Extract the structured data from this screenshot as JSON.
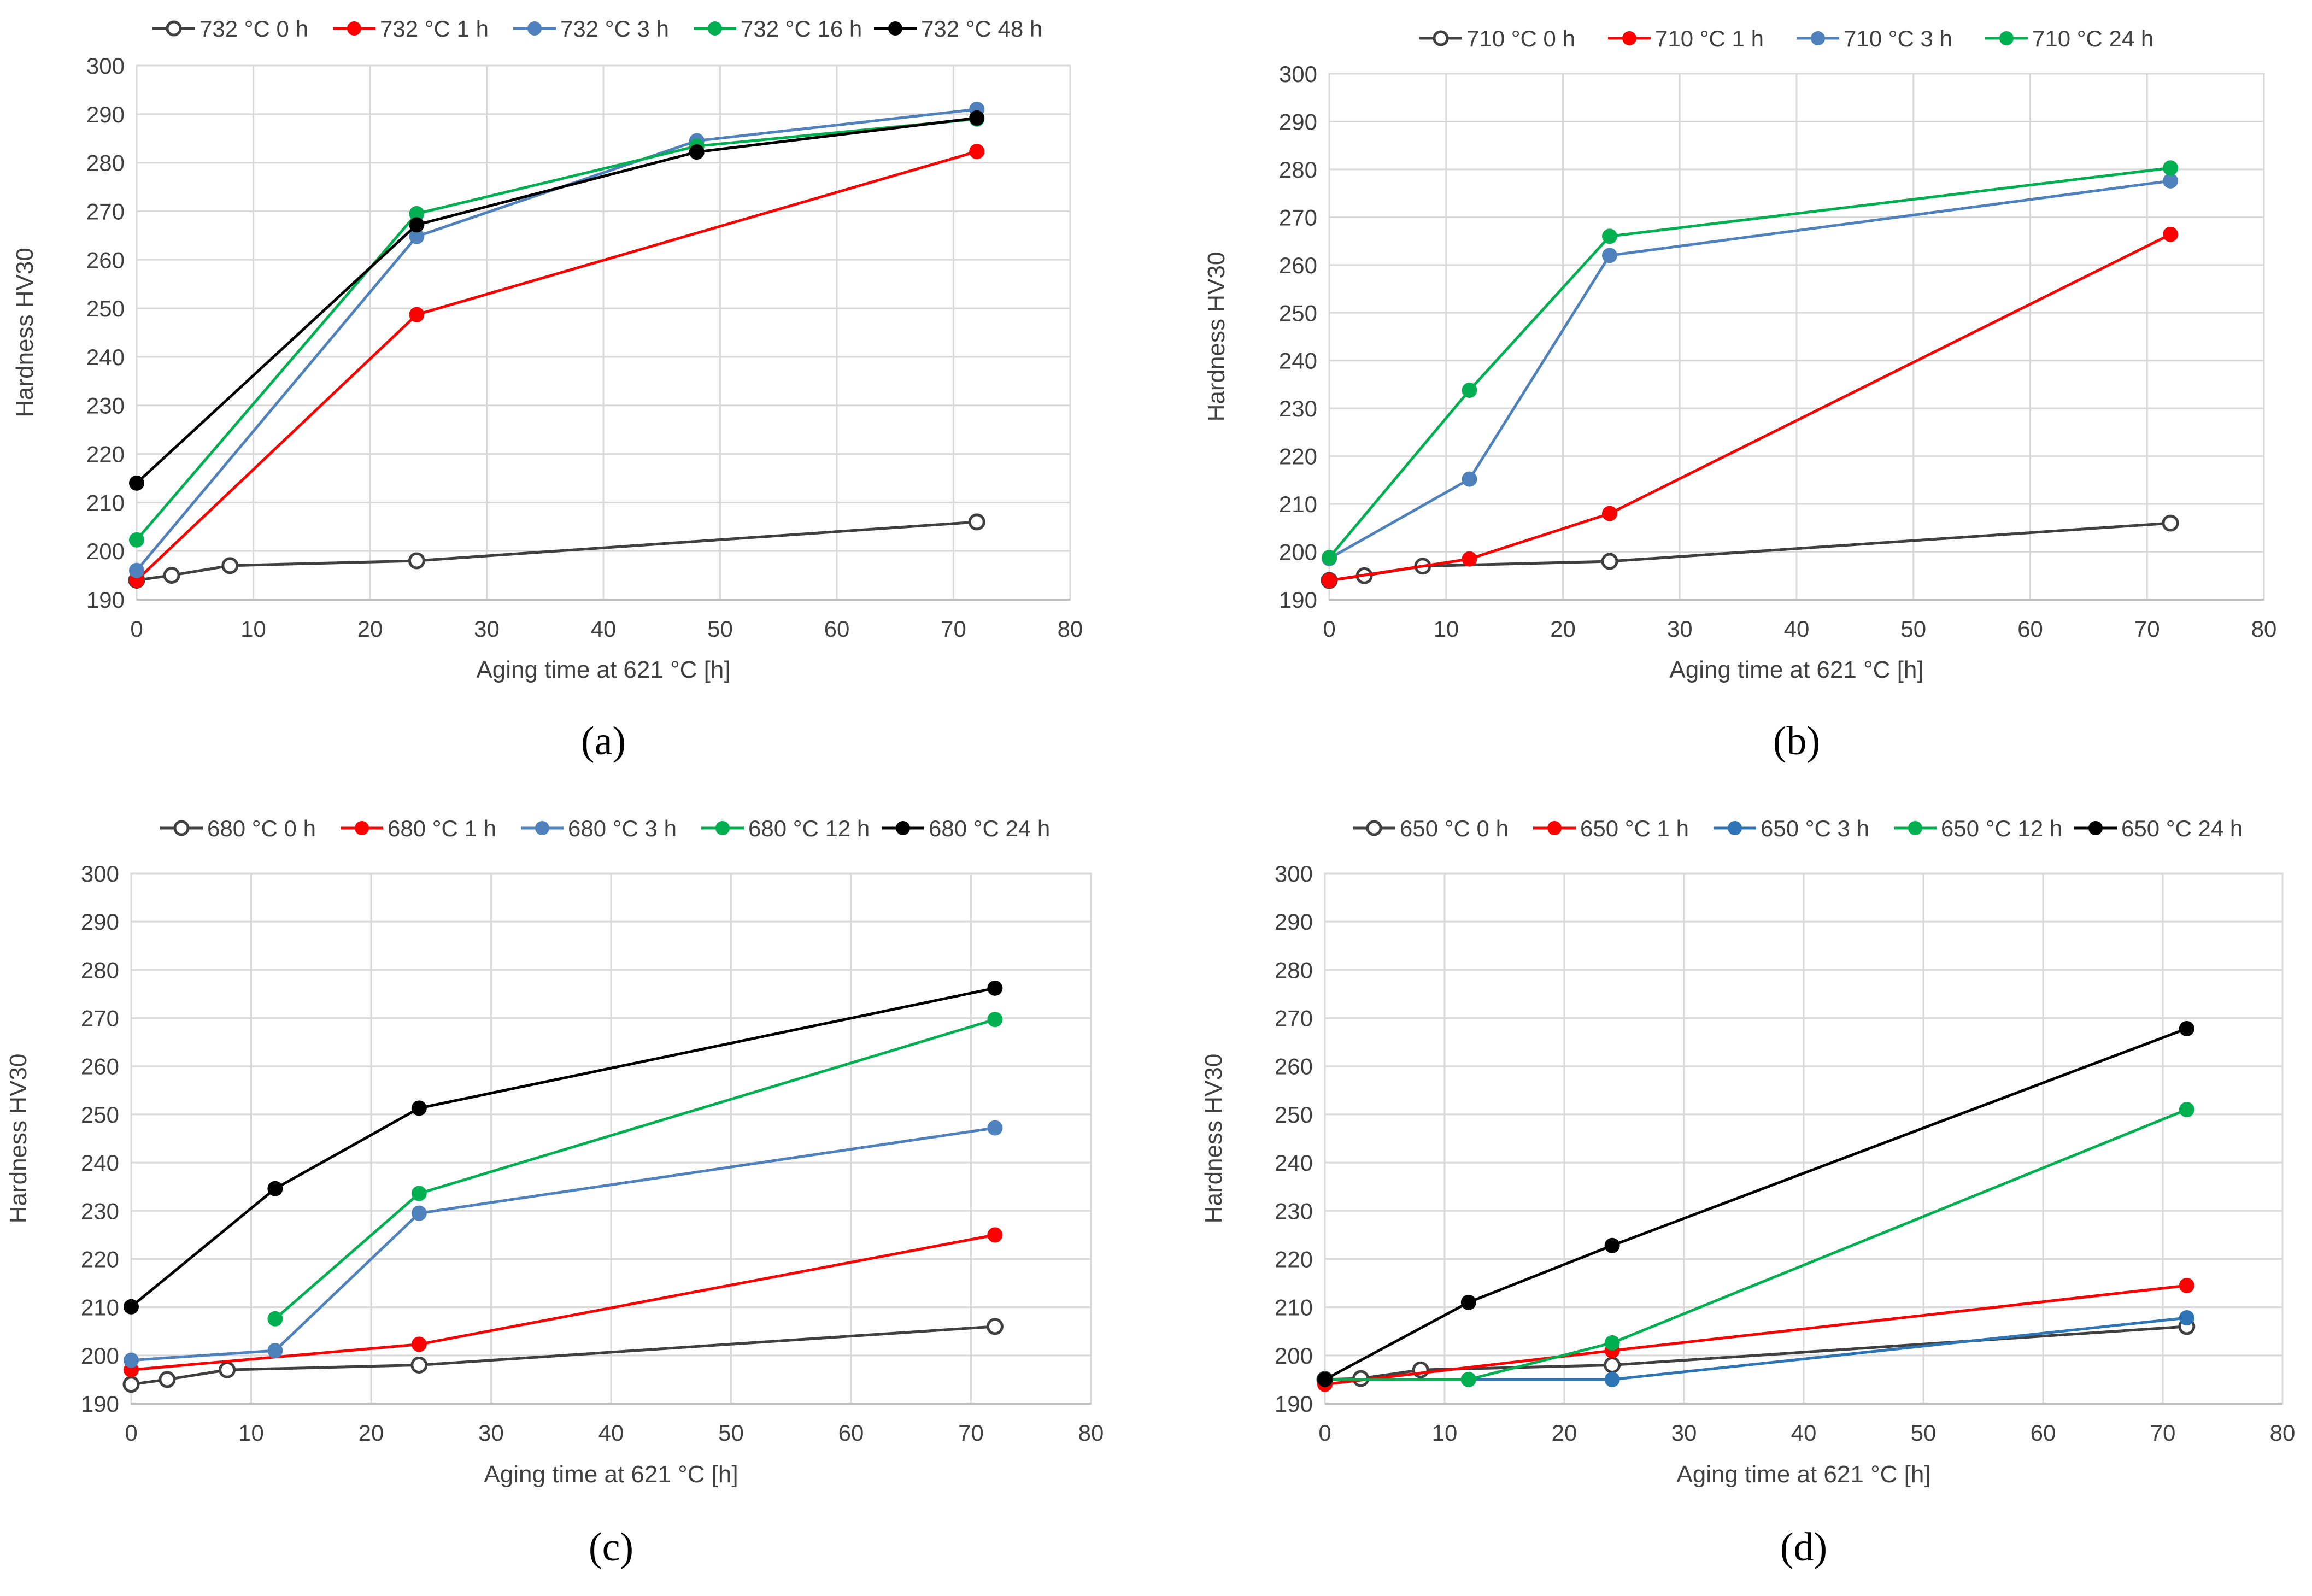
{
  "chart_data": [
    {
      "id": "a",
      "panel_label": "(a)",
      "type": "line",
      "title": "",
      "xlabel": "Aging time at 621  °C [h]",
      "ylabel": "Hardness HV30",
      "xlim": [
        0,
        80
      ],
      "ylim": [
        190,
        300
      ],
      "xticks": [
        "0",
        "10",
        "20",
        "30",
        "40",
        "50",
        "60",
        "70",
        "80"
      ],
      "yticks": [
        "190",
        "200",
        "210",
        "220",
        "230",
        "240",
        "250",
        "260",
        "270",
        "280",
        "290",
        "300"
      ],
      "grid": true,
      "legend_position": "top",
      "series": [
        {
          "name": "732 °C 0 h",
          "color": "#404040",
          "hollow": true,
          "x": [
            0,
            3,
            8,
            24,
            72
          ],
          "y": [
            194,
            195,
            197,
            198,
            206
          ]
        },
        {
          "name": "732 °C 1 h",
          "color": "#ff0000",
          "hollow": false,
          "x": [
            0,
            24,
            72
          ],
          "y": [
            194,
            248.7,
            282.3
          ]
        },
        {
          "name": "732 °C 3 h",
          "color": "#4f81bd",
          "hollow": false,
          "x": [
            0,
            24,
            48,
            72
          ],
          "y": [
            196,
            264.8,
            284.5,
            291
          ]
        },
        {
          "name": "732 °C 16 h",
          "color": "#00b050",
          "hollow": false,
          "x": [
            0,
            24,
            48,
            72
          ],
          "y": [
            202.3,
            269.5,
            283.4,
            289
          ]
        },
        {
          "name": "732 °C 48 h",
          "color": "#000000",
          "hollow": false,
          "x": [
            0,
            24,
            48,
            72
          ],
          "y": [
            214,
            267.2,
            282.2,
            289.2
          ]
        }
      ]
    },
    {
      "id": "b",
      "panel_label": "(b)",
      "type": "line",
      "title": "",
      "xlabel": "Aging time at 621  °C [h]",
      "ylabel": "Hardness HV30",
      "xlim": [
        0,
        80
      ],
      "ylim": [
        190,
        300
      ],
      "xticks": [
        "0",
        "10",
        "20",
        "30",
        "40",
        "50",
        "60",
        "70",
        "80"
      ],
      "yticks": [
        "190",
        "200",
        "210",
        "220",
        "230",
        "240",
        "250",
        "260",
        "270",
        "280",
        "290",
        "300"
      ],
      "grid": true,
      "legend_position": "top",
      "series": [
        {
          "name": "710 °C 0 h",
          "color": "#404040",
          "hollow": true,
          "x": [
            0,
            3,
            8,
            24,
            72
          ],
          "y": [
            194,
            195,
            197,
            198,
            206
          ]
        },
        {
          "name": "710 °C 1 h",
          "color": "#ff0000",
          "hollow": false,
          "x": [
            0,
            12,
            24,
            72
          ],
          "y": [
            194,
            198.5,
            208,
            266.4
          ]
        },
        {
          "name": "710 °C 3 h",
          "color": "#4f81bd",
          "hollow": false,
          "x": [
            0,
            12,
            24,
            72
          ],
          "y": [
            198.6,
            215.2,
            262,
            277.6
          ]
        },
        {
          "name": "710 °C 24 h",
          "color": "#00b050",
          "hollow": false,
          "x": [
            0,
            12,
            24,
            72
          ],
          "y": [
            198.8,
            233.8,
            266,
            280.3
          ]
        }
      ]
    },
    {
      "id": "c",
      "panel_label": "(c)",
      "type": "line",
      "title": "",
      "xlabel": "Aging time at 621  °C [h]",
      "ylabel": "Hardness HV30",
      "xlim": [
        0,
        80
      ],
      "ylim": [
        190,
        300
      ],
      "xticks": [
        "0",
        "10",
        "20",
        "30",
        "40",
        "50",
        "60",
        "70",
        "80"
      ],
      "yticks": [
        "190",
        "200",
        "210",
        "220",
        "230",
        "240",
        "250",
        "260",
        "270",
        "280",
        "290",
        "300"
      ],
      "grid": true,
      "legend_position": "top",
      "series": [
        {
          "name": "680 °C 0 h",
          "color": "#404040",
          "hollow": true,
          "x": [
            0,
            3,
            8,
            24,
            72
          ],
          "y": [
            194,
            195,
            197,
            198,
            206
          ]
        },
        {
          "name": "680 °C 1 h",
          "color": "#ff0000",
          "hollow": false,
          "x": [
            0,
            24,
            72
          ],
          "y": [
            197,
            202.3,
            225
          ]
        },
        {
          "name": "680 °C 3 h",
          "color": "#4f81bd",
          "hollow": false,
          "x": [
            0,
            12,
            24,
            72
          ],
          "y": [
            199,
            201,
            229.5,
            247.2
          ]
        },
        {
          "name": "680 °C 12 h",
          "color": "#00b050",
          "hollow": false,
          "x": [
            12,
            24,
            72
          ],
          "y": [
            207.6,
            233.6,
            269.7
          ]
        },
        {
          "name": "680 °C 24 h",
          "color": "#000000",
          "hollow": false,
          "x": [
            0,
            12,
            24,
            72
          ],
          "y": [
            210.1,
            234.6,
            251.3,
            276.2
          ]
        }
      ]
    },
    {
      "id": "d",
      "panel_label": "(d)",
      "type": "line",
      "title": "",
      "xlabel": "Aging time at 621  °C [h]",
      "ylabel": "Hardness HV30",
      "xlim": [
        0,
        80
      ],
      "ylim": [
        190,
        300
      ],
      "xticks": [
        "0",
        "10",
        "20",
        "30",
        "40",
        "50",
        "60",
        "70",
        "80"
      ],
      "yticks": [
        "190",
        "200",
        "210",
        "220",
        "230",
        "240",
        "250",
        "260",
        "270",
        "280",
        "290",
        "300"
      ],
      "grid": true,
      "legend_position": "top",
      "series": [
        {
          "name": "650 °C 0 h",
          "color": "#404040",
          "hollow": true,
          "x": [
            0,
            3,
            8,
            24,
            72
          ],
          "y": [
            195,
            195.2,
            197,
            198,
            206
          ]
        },
        {
          "name": "650 °C 1 h",
          "color": "#ff0000",
          "hollow": false,
          "x": [
            0,
            24,
            72
          ],
          "y": [
            194,
            201,
            214.5
          ]
        },
        {
          "name": "650 °C 3 h",
          "color": "#2e75b6",
          "hollow": false,
          "x": [
            0,
            12,
            24,
            72
          ],
          "y": [
            195,
            195,
            195,
            207.8
          ]
        },
        {
          "name": "650 °C 12 h",
          "color": "#00b050",
          "hollow": false,
          "x": [
            0,
            12,
            24,
            72
          ],
          "y": [
            195,
            195,
            202.6,
            251
          ]
        },
        {
          "name": "650 °C 24 h",
          "color": "#000000",
          "hollow": false,
          "x": [
            0,
            12,
            24,
            72
          ],
          "y": [
            195,
            211,
            222.8,
            267.8
          ]
        }
      ]
    }
  ]
}
